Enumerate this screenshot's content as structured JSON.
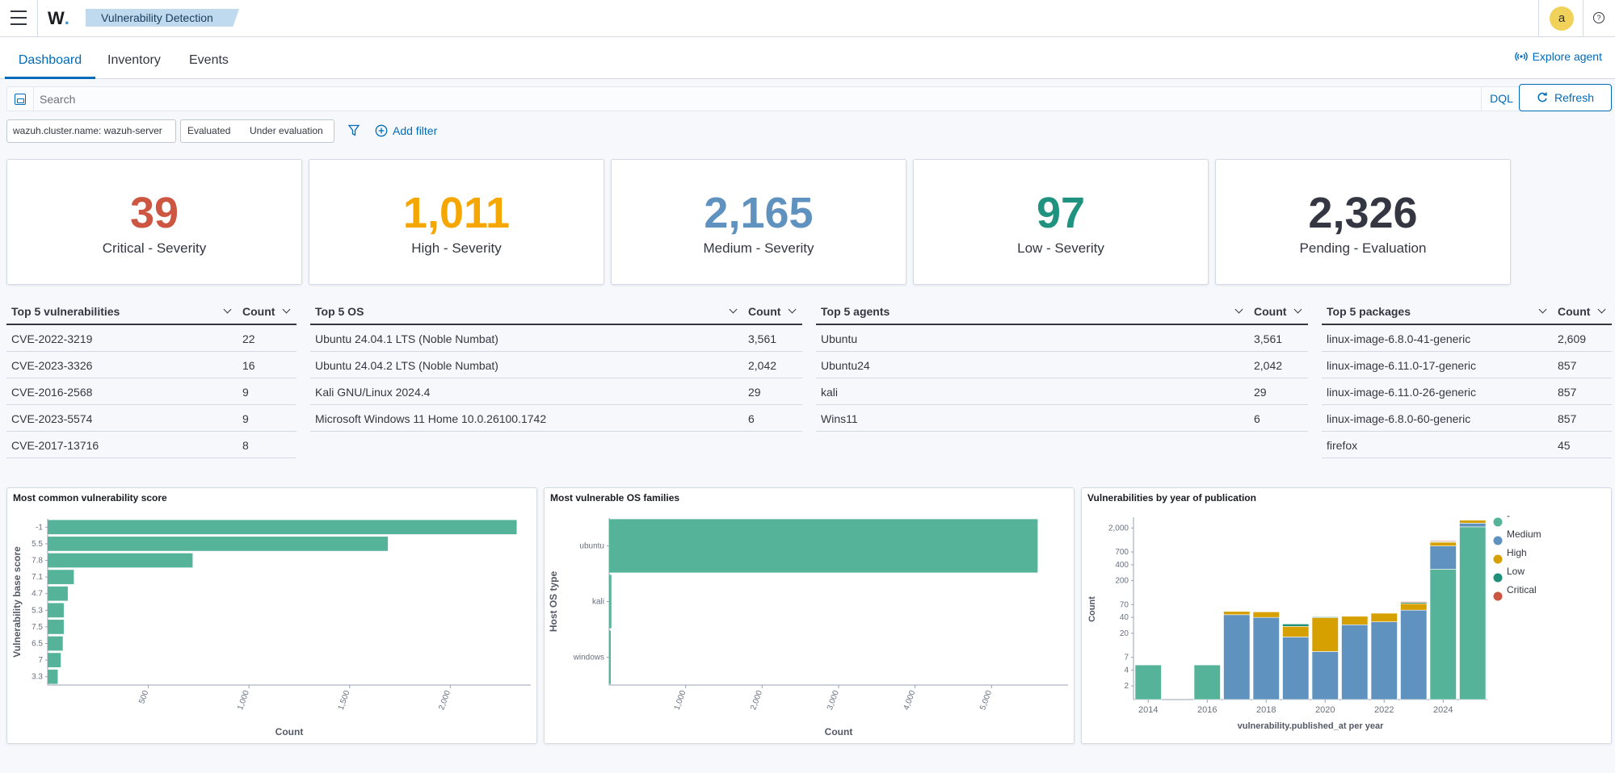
{
  "header": {
    "app_name": "Vulnerability Detection",
    "avatar_initial": "a",
    "help_glyph": "?"
  },
  "tabs": [
    {
      "label": "Dashboard",
      "active": true
    },
    {
      "label": "Inventory",
      "active": false
    },
    {
      "label": "Events",
      "active": false
    }
  ],
  "explore_agent_label": "Explore agent",
  "search": {
    "placeholder": "Search",
    "value": "",
    "dql_label": "DQL",
    "refresh_label": "Refresh"
  },
  "filters": {
    "cluster_filter": "wazuh.cluster.name: wazuh-server",
    "state_options": [
      "Evaluated",
      "Under evaluation"
    ],
    "add_filter_label": "Add filter"
  },
  "stats": [
    {
      "value": "39",
      "label": "Critical - Severity",
      "color": "#cc5642"
    },
    {
      "value": "1,011",
      "label": "High - Severity",
      "color": "#f5a700"
    },
    {
      "value": "2,165",
      "label": "Medium - Severity",
      "color": "#6092c0"
    },
    {
      "value": "97",
      "label": "Low - Severity",
      "color": "#209280"
    },
    {
      "value": "2,326",
      "label": "Pending - Evaluation",
      "color": "#343741"
    }
  ],
  "tables": [
    {
      "title": "Top 5 vulnerabilities",
      "count_label": "Count",
      "rows": [
        [
          "CVE-2022-3219",
          "22"
        ],
        [
          "CVE-2023-3326",
          "16"
        ],
        [
          "CVE-2016-2568",
          "9"
        ],
        [
          "CVE-2023-5574",
          "9"
        ],
        [
          "CVE-2017-13716",
          "8"
        ]
      ]
    },
    {
      "title": "Top 5 OS",
      "count_label": "Count",
      "rows": [
        [
          "Ubuntu 24.04.1 LTS (Noble Numbat)",
          "3,561"
        ],
        [
          "Ubuntu 24.04.2 LTS (Noble Numbat)",
          "2,042"
        ],
        [
          "Kali GNU/Linux 2024.4",
          "29"
        ],
        [
          "Microsoft Windows 11 Home 10.0.26100.1742",
          "6"
        ]
      ]
    },
    {
      "title": "Top 5 agents",
      "count_label": "Count",
      "rows": [
        [
          "Ubuntu",
          "3,561"
        ],
        [
          "Ubuntu24",
          "2,042"
        ],
        [
          "kali",
          "29"
        ],
        [
          "Wins11",
          "6"
        ]
      ]
    },
    {
      "title": "Top 5 packages",
      "count_label": "Count",
      "rows": [
        [
          "linux-image-6.8.0-41-generic",
          "2,609"
        ],
        [
          "linux-image-6.11.0-17-generic",
          "857"
        ],
        [
          "linux-image-6.11.0-26-generic",
          "857"
        ],
        [
          "linux-image-6.8.0-60-generic",
          "857"
        ],
        [
          "firefox",
          "45"
        ]
      ]
    }
  ],
  "chart_titles": [
    "Most common vulnerability score",
    "Most vulnerable OS families",
    "Vulnerabilities by year of publication"
  ],
  "chart_data": [
    {
      "type": "bar",
      "orientation": "horizontal",
      "categories": [
        "-1",
        "5.5",
        "7.8",
        "7.1",
        "4.7",
        "5.3",
        "7.5",
        "6.5",
        "7",
        "3.3"
      ],
      "values": [
        2330,
        1690,
        720,
        130,
        100,
        80,
        80,
        75,
        65,
        50
      ],
      "xlabel": "Count",
      "ylabel": "Vulnerability base score",
      "xticks": [
        "500",
        "1,000",
        "1,500",
        "2,000"
      ],
      "xlim": [
        0,
        2400
      ],
      "color": "#54b399"
    },
    {
      "type": "bar",
      "orientation": "horizontal",
      "categories": [
        "ubuntu",
        "kali",
        "windows"
      ],
      "values": [
        5603,
        29,
        6
      ],
      "xlabel": "Count",
      "ylabel": "Host OS type",
      "xticks": [
        "1,000",
        "2,000",
        "3,000",
        "4,000",
        "5,000"
      ],
      "xlim": [
        0,
        6000
      ],
      "color": "#54b399"
    },
    {
      "type": "bar",
      "stacked": true,
      "scale": "log",
      "xlabel": "vulnerability.published_at per year",
      "ylabel": "Count",
      "yticks": [
        "2",
        "4",
        "7",
        "20",
        "40",
        "70",
        "200",
        "400",
        "700",
        "2,000"
      ],
      "xticks": [
        "2014",
        "2016",
        "2018",
        "2020",
        "2022",
        "2024"
      ],
      "categories": [
        "2014",
        "2015",
        "2016",
        "2017",
        "2018",
        "2019",
        "2020",
        "2021",
        "2022",
        "2023",
        "2024",
        "2025"
      ],
      "series": [
        {
          "name": "-",
          "color": "#54b399",
          "values": [
            5,
            0,
            5,
            0,
            0,
            0,
            0,
            0,
            0,
            0,
            330,
            2100
          ]
        },
        {
          "name": "Medium",
          "color": "#6092c0",
          "values": [
            0,
            0,
            0,
            45,
            40,
            17,
            9,
            29,
            33,
            55,
            580,
            370
          ]
        },
        {
          "name": "High",
          "color": "#d6a000",
          "values": [
            0,
            0,
            0,
            7,
            11,
            10,
            31,
            13,
            15,
            18,
            165,
            340
          ]
        },
        {
          "name": "Low",
          "color": "#1e8f7a",
          "values": [
            0,
            0,
            0,
            0,
            0,
            3,
            1,
            0,
            0,
            4,
            40,
            0
          ]
        },
        {
          "name": "Critical",
          "color": "#cc5642",
          "values": [
            0,
            0,
            0,
            0,
            0,
            0,
            0,
            0,
            0,
            3,
            25,
            0
          ]
        }
      ]
    }
  ]
}
